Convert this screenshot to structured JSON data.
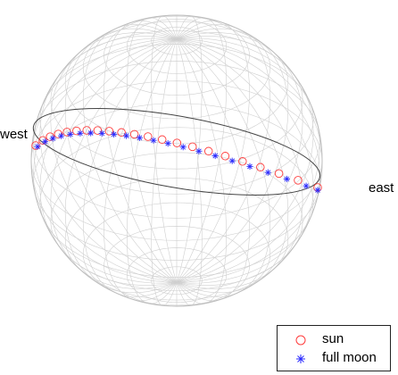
{
  "labels": {
    "west": "west",
    "east": "east"
  },
  "legend": {
    "entries": [
      {
        "label": "sun",
        "marker": "circle",
        "color": "#ff3b3b"
      },
      {
        "label": "full moon",
        "marker": "star",
        "color": "#2a2aff"
      }
    ]
  },
  "colors": {
    "mesh": "#cfcfcf",
    "horizon": "#444444"
  }
}
